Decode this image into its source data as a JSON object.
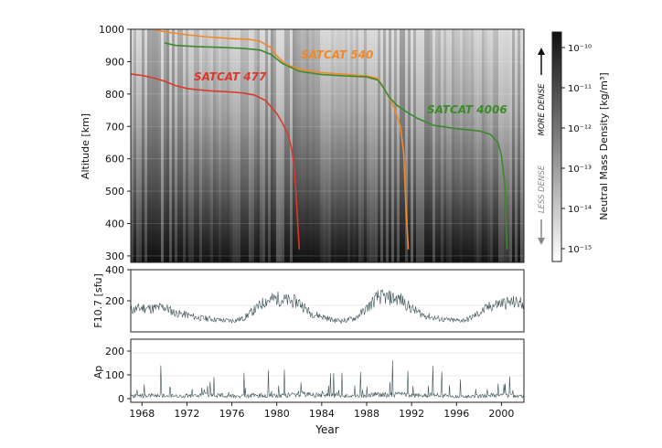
{
  "chart_data": [
    {
      "type": "line",
      "panel": "density",
      "ylabel": "Altitude [km]",
      "ylim": [
        280,
        1000
      ],
      "xlim": [
        1967,
        2002
      ],
      "yticks": [
        300,
        400,
        500,
        600,
        700,
        800,
        900,
        1000
      ],
      "background": "heatmap of neutral mass density (grayscale) versus year and altitude",
      "series": [
        {
          "name": "SATCAT 477",
          "color": "#d93a2b",
          "x": [
            1967.0,
            1968.0,
            1969.0,
            1970.0,
            1971.0,
            1972.0,
            1973.0,
            1974.0,
            1975.0,
            1976.0,
            1977.0,
            1978.0,
            1979.0,
            1980.0,
            1980.5,
            1981.0,
            1981.3,
            1981.5,
            1981.7,
            1981.9,
            1982.0
          ],
          "y": [
            862,
            857,
            850,
            840,
            826,
            817,
            813,
            810,
            808,
            806,
            803,
            797,
            780,
            740,
            710,
            675,
            635,
            590,
            500,
            380,
            320
          ]
        },
        {
          "name": "SATCAT 540",
          "color": "#f0892a",
          "x": [
            1969.0,
            1970.0,
            1972.0,
            1974.0,
            1976.0,
            1977.5,
            1978.5,
            1979.5,
            1980.0,
            1980.8,
            1982.0,
            1984.0,
            1986.0,
            1988.0,
            1989.0,
            1989.5,
            1990.0,
            1990.5,
            1991.0,
            1991.3,
            1991.5,
            1991.7
          ],
          "y": [
            1000,
            992,
            983,
            976,
            971,
            969,
            963,
            943,
            918,
            892,
            877,
            866,
            861,
            856,
            848,
            820,
            790,
            755,
            700,
            620,
            450,
            320
          ]
        },
        {
          "name": "SATCAT 4006",
          "color": "#3c8a2a",
          "x": [
            1970.0,
            1971.0,
            1973.0,
            1975.0,
            1977.0,
            1978.5,
            1979.5,
            1980.5,
            1982.0,
            1984.0,
            1986.0,
            1988.0,
            1989.0,
            1989.5,
            1990.0,
            1990.7,
            1991.5,
            1992.5,
            1994.0,
            1996.0,
            1998.0,
            1999.0,
            1999.7,
            2000.0,
            2000.3,
            2000.5
          ],
          "y": [
            958,
            950,
            946,
            944,
            941,
            936,
            922,
            894,
            870,
            860,
            856,
            853,
            843,
            820,
            790,
            765,
            746,
            725,
            703,
            693,
            686,
            676,
            650,
            610,
            520,
            320
          ]
        }
      ],
      "annotations": [
        "SATCAT 477",
        "SATCAT 540",
        "SATCAT 4006"
      ]
    },
    {
      "type": "line",
      "panel": "f107",
      "ylabel": "F10.7 [sfu]",
      "ylim": [
        0,
        400
      ],
      "yticks": [
        200,
        400
      ],
      "xlim": [
        1967,
        2002
      ],
      "color": "#3b5256",
      "series": [
        {
          "name": "",
          "x": [
            1967.0,
            1968.0,
            1969.0,
            1970.0,
            1971.0,
            1972.0,
            1973.0,
            1974.0,
            1975.0,
            1976.0,
            1977.0,
            1978.0,
            1979.0,
            1980.0,
            1981.0,
            1982.0,
            1983.0,
            1984.0,
            1985.0,
            1986.0,
            1987.0,
            1988.0,
            1989.0,
            1990.0,
            1991.0,
            1992.0,
            1993.0,
            1994.0,
            1995.0,
            1996.0,
            1997.0,
            1998.0,
            1999.0,
            2000.0,
            2001.0,
            2002.0
          ],
          "y": [
            140,
            155,
            150,
            160,
            120,
            110,
            90,
            85,
            75,
            72,
            85,
            140,
            200,
            215,
            200,
            190,
            120,
            100,
            75,
            72,
            90,
            150,
            225,
            220,
            210,
            150,
            110,
            90,
            78,
            72,
            80,
            120,
            165,
            185,
            190,
            185
          ]
        }
      ]
    },
    {
      "type": "line",
      "panel": "ap",
      "ylabel": "Ap",
      "ylim": [
        0,
        250
      ],
      "yticks": [
        0,
        100,
        200
      ],
      "xlim": [
        1967,
        2002
      ],
      "xlabel": "Year",
      "xticks": [
        1968,
        1972,
        1976,
        1980,
        1984,
        1988,
        1992,
        1996,
        2000
      ],
      "color": "#3b5256",
      "series": [
        {
          "name": "",
          "x": [
            1967.0,
            1968.0,
            1969.0,
            1970.0,
            1971.0,
            1972.0,
            1973.0,
            1974.0,
            1975.0,
            1976.0,
            1977.0,
            1978.0,
            1979.0,
            1980.0,
            1981.0,
            1982.0,
            1983.0,
            1984.0,
            1985.0,
            1986.0,
            1987.0,
            1988.0,
            1989.0,
            1990.0,
            1991.0,
            1992.0,
            1993.0,
            1994.0,
            1995.0,
            1996.0,
            1997.0,
            1998.0,
            1999.0,
            2000.0,
            2001.0,
            2002.0
          ],
          "y": [
            12,
            13,
            12,
            12,
            11,
            13,
            14,
            16,
            14,
            11,
            10,
            14,
            13,
            12,
            15,
            20,
            16,
            15,
            13,
            11,
            10,
            12,
            18,
            15,
            19,
            13,
            14,
            15,
            13,
            9,
            9,
            11,
            13,
            15,
            13,
            12
          ]
        }
      ]
    }
  ],
  "colorbar": {
    "label": "Neutral Mass Density [kg/m³]",
    "ticks": [
      "10⁻¹⁰",
      "10⁻¹¹",
      "10⁻¹²",
      "10⁻¹³",
      "10⁻¹⁴",
      "10⁻¹⁵"
    ],
    "more_dense": "MORE DENSE",
    "less_dense": "LESS DENSE"
  },
  "colors": {
    "satcat477": "#d93a2b",
    "satcat540": "#f0892a",
    "satcat4006": "#3c8a2a",
    "index_line": "#3b5256"
  }
}
